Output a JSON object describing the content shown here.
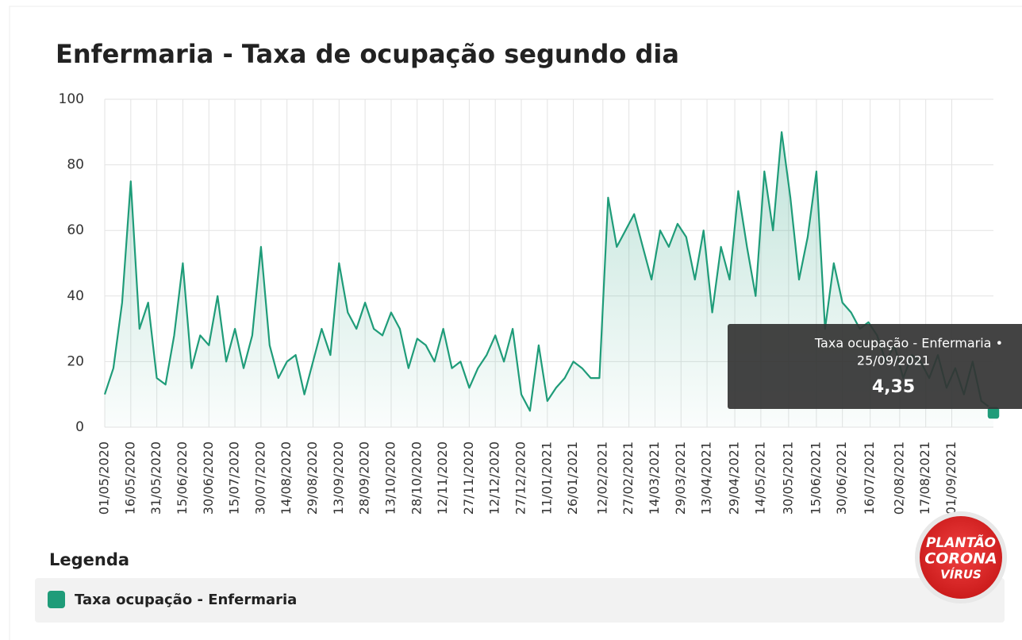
{
  "chart_data": {
    "type": "line",
    "title": "Enfermaria - Taxa de ocupação segundo dia",
    "ylim": [
      0,
      100
    ],
    "yticks": [
      0,
      20,
      40,
      60,
      80,
      100
    ],
    "xlim": [
      "01/05/2020",
      "25/09/2021"
    ],
    "xticks": [
      "01/05/2020",
      "16/05/2020",
      "31/05/2020",
      "15/06/2020",
      "30/06/2020",
      "15/07/2020",
      "30/07/2020",
      "14/08/2020",
      "29/08/2020",
      "13/09/2020",
      "28/09/2020",
      "13/10/2020",
      "28/10/2020",
      "12/11/2020",
      "27/11/2020",
      "12/12/2020",
      "27/12/2020",
      "11/01/2021",
      "26/01/2021",
      "12/02/2021",
      "27/02/2021",
      "14/03/2021",
      "29/03/2021",
      "13/04/2021",
      "29/04/2021",
      "14/05/2021",
      "30/05/2021",
      "15/06/2021",
      "30/06/2021",
      "16/07/2021",
      "02/08/2021",
      "17/08/2021",
      "01/09/2021"
    ],
    "grid": true,
    "legend_title": "Legenda",
    "x": [
      "01/05/2020",
      "06/05/2020",
      "11/05/2020",
      "16/05/2020",
      "21/05/2020",
      "26/05/2020",
      "31/05/2020",
      "05/06/2020",
      "10/06/2020",
      "15/06/2020",
      "20/06/2020",
      "25/06/2020",
      "30/06/2020",
      "05/07/2020",
      "10/07/2020",
      "15/07/2020",
      "20/07/2020",
      "25/07/2020",
      "30/07/2020",
      "04/08/2020",
      "09/08/2020",
      "14/08/2020",
      "19/08/2020",
      "24/08/2020",
      "29/08/2020",
      "03/09/2020",
      "08/09/2020",
      "13/09/2020",
      "18/09/2020",
      "23/09/2020",
      "28/09/2020",
      "03/10/2020",
      "08/10/2020",
      "13/10/2020",
      "18/10/2020",
      "23/10/2020",
      "28/10/2020",
      "02/11/2020",
      "07/11/2020",
      "12/11/2020",
      "17/11/2020",
      "22/11/2020",
      "27/11/2020",
      "02/12/2020",
      "07/12/2020",
      "12/12/2020",
      "17/12/2020",
      "22/12/2020",
      "27/12/2020",
      "01/01/2021",
      "06/01/2021",
      "11/01/2021",
      "16/01/2021",
      "21/01/2021",
      "26/01/2021",
      "31/01/2021",
      "05/02/2021",
      "10/02/2021",
      "15/02/2021",
      "20/02/2021",
      "25/02/2021",
      "02/03/2021",
      "07/03/2021",
      "12/03/2021",
      "17/03/2021",
      "22/03/2021",
      "27/03/2021",
      "01/04/2021",
      "06/04/2021",
      "11/04/2021",
      "16/04/2021",
      "21/04/2021",
      "26/04/2021",
      "01/05/2021",
      "06/05/2021",
      "11/05/2021",
      "16/05/2021",
      "21/05/2021",
      "26/05/2021",
      "31/05/2021",
      "05/06/2021",
      "10/06/2021",
      "15/06/2021",
      "20/06/2021",
      "25/06/2021",
      "30/06/2021",
      "05/07/2021",
      "10/07/2021",
      "15/07/2021",
      "20/07/2021",
      "25/07/2021",
      "30/07/2021",
      "04/08/2021",
      "09/08/2021",
      "14/08/2021",
      "19/08/2021",
      "24/08/2021",
      "29/08/2021",
      "03/09/2021",
      "08/09/2021",
      "13/09/2021",
      "18/09/2021",
      "23/09/2021",
      "25/09/2021"
    ],
    "series": [
      {
        "name": "Taxa ocupação - Enfermaria",
        "color": "#1f9c79",
        "values": [
          10,
          18,
          38,
          75,
          30,
          38,
          15,
          13,
          28,
          50,
          18,
          28,
          25,
          40,
          20,
          30,
          18,
          28,
          55,
          25,
          15,
          20,
          22,
          10,
          20,
          30,
          22,
          50,
          35,
          30,
          38,
          30,
          28,
          35,
          30,
          18,
          27,
          25,
          20,
          30,
          18,
          20,
          12,
          18,
          22,
          28,
          20,
          30,
          10,
          5,
          25,
          8,
          12,
          15,
          20,
          18,
          15,
          15,
          70,
          55,
          60,
          65,
          55,
          45,
          60,
          55,
          62,
          58,
          45,
          60,
          35,
          55,
          45,
          72,
          55,
          40,
          78,
          60,
          90,
          70,
          45,
          58,
          78,
          30,
          50,
          38,
          35,
          30,
          32,
          28,
          20,
          25,
          15,
          22,
          20,
          15,
          22,
          12,
          18,
          10,
          20,
          8,
          6,
          4.35
        ]
      }
    ],
    "tooltip": {
      "title": "Taxa ocupação - Enfermaria •",
      "date": "25/09/2021",
      "value": "4,35"
    },
    "badge": [
      "PLANTÃO",
      "CORONA",
      "VÍRUS"
    ]
  }
}
